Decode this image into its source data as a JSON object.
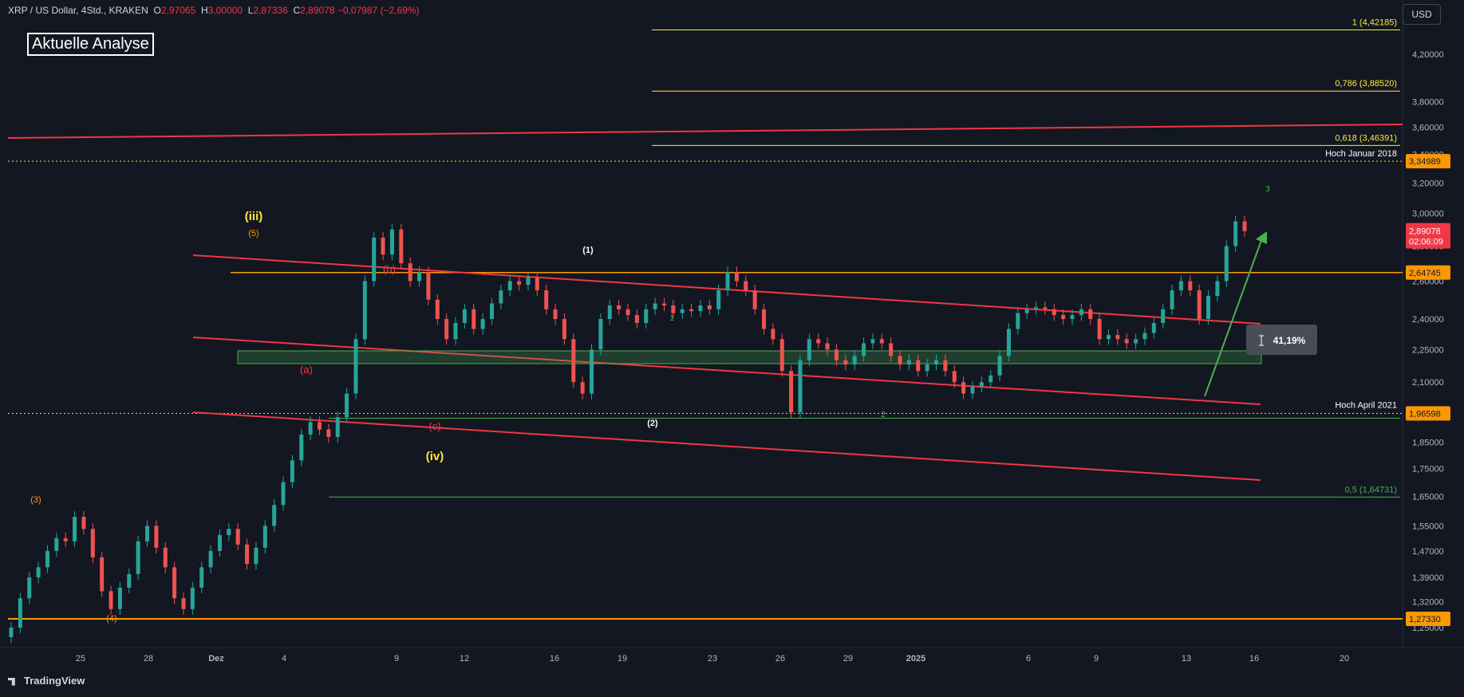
{
  "header": {
    "symbol": "XRP / US Dollar, 4Std., KRAKEN",
    "o_label": "O",
    "o_value": "2,97065",
    "h_label": "H",
    "h_value": "3,00000",
    "l_label": "L",
    "l_value": "2,87336",
    "c_label": "C",
    "c_value": "2,89078",
    "change": "−0,07987 (−2,69%)"
  },
  "analysis_label": "Aktuelle Analyse",
  "currency": "USD",
  "footer": {
    "brand": "TradingView"
  },
  "colors": {
    "background": "#131722",
    "up": "#26a69a",
    "down": "#ef5350",
    "red_line": "#f23645",
    "fib_yellow": "#ffeb3b",
    "orange": "#ff9800",
    "green_line": "#4caf50"
  },
  "chart_data": {
    "type": "candlestick",
    "y_scale": "log",
    "ylim": [
      1.2,
      4.6
    ],
    "y_ticks": [
      "4,20000",
      "3,80000",
      "3,60000",
      "3,40000",
      "3,20000",
      "3,00000",
      "2,80000",
      "2,60000",
      "2,40000",
      "2,25000",
      "2,10000",
      "1,95000",
      "1,85000",
      "1,75000",
      "1,65000",
      "1,55000",
      "1,47000",
      "1,39000",
      "1,32000",
      "1,25000"
    ],
    "x_ticks": [
      "25",
      "28",
      "Dez",
      "4",
      "9",
      "12",
      "16",
      "19",
      "23",
      "26",
      "29",
      "2025",
      "6",
      "9",
      "13",
      "16",
      "20"
    ],
    "price_labels": {
      "high_jan_2018": "3,34989",
      "current": "2,89078",
      "countdown": "02:06:09",
      "level_orange": "2,64745",
      "high_apr_2021": "1,96598",
      "level_low": "1,27330"
    },
    "fibonacci": [
      {
        "label": "1 (4,42185)",
        "value": 4.42185
      },
      {
        "label": "0,786 (3,88520)",
        "value": 3.8852
      },
      {
        "label": "0,618 (3,46391)",
        "value": 3.46391
      },
      {
        "label": "0,5 (1,64731)",
        "value": 1.64731
      }
    ],
    "horizontal_lines": [
      {
        "label": "Hoch Januar 2018",
        "value": 3.34989
      },
      {
        "label": "Hoch April 2021",
        "value": 1.96598
      },
      {
        "label": "",
        "value": 2.64745
      },
      {
        "label": "",
        "value": 1.2733
      }
    ],
    "measure_label": "41,19%",
    "wave_labels": [
      "(iii)",
      "(5)",
      "(iv)",
      "(3)",
      "(4)",
      "(a)",
      "(b)",
      "(c)",
      "(1)",
      "(2)",
      "1",
      "2",
      "3"
    ],
    "series": [
      {
        "values": [
          1.25,
          1.33,
          1.39,
          1.42,
          1.47,
          1.51,
          1.5,
          1.58,
          1.54,
          1.45,
          1.35,
          1.3,
          1.36,
          1.4,
          1.5,
          1.55,
          1.48,
          1.42,
          1.33,
          1.3,
          1.36,
          1.42,
          1.47,
          1.52,
          1.54,
          1.49,
          1.43,
          1.48,
          1.55,
          1.62,
          1.7,
          1.78,
          1.88,
          1.93,
          1.9,
          1.87,
          1.95,
          2.05,
          2.3,
          2.6,
          2.85,
          2.75,
          2.9,
          2.7,
          2.6,
          2.65,
          2.5,
          2.4,
          2.3,
          2.38,
          2.45,
          2.35,
          2.4,
          2.48,
          2.55,
          2.6,
          2.58,
          2.62,
          2.55,
          2.45,
          2.4,
          2.3,
          2.1,
          2.05,
          2.25,
          2.4,
          2.47,
          2.45,
          2.42,
          2.38,
          2.45,
          2.48,
          2.47,
          2.43,
          2.45,
          2.44,
          2.47,
          2.45,
          2.55,
          2.65,
          2.6,
          2.55,
          2.45,
          2.35,
          2.3,
          2.15,
          1.97,
          2.2,
          2.3,
          2.28,
          2.25,
          2.2,
          2.18,
          2.22,
          2.28,
          2.3,
          2.28,
          2.22,
          2.18,
          2.2,
          2.15,
          2.18,
          2.2,
          2.15,
          2.1,
          2.05,
          2.08,
          2.1,
          2.13,
          2.22,
          2.35,
          2.43,
          2.45,
          2.46,
          2.45,
          2.42,
          2.4,
          2.42,
          2.45,
          2.4,
          2.3,
          2.32,
          2.3,
          2.28,
          2.3,
          2.33,
          2.38,
          2.45,
          2.55,
          2.6,
          2.55,
          2.4,
          2.52,
          2.6,
          2.8,
          2.95,
          2.89
        ]
      }
    ]
  }
}
